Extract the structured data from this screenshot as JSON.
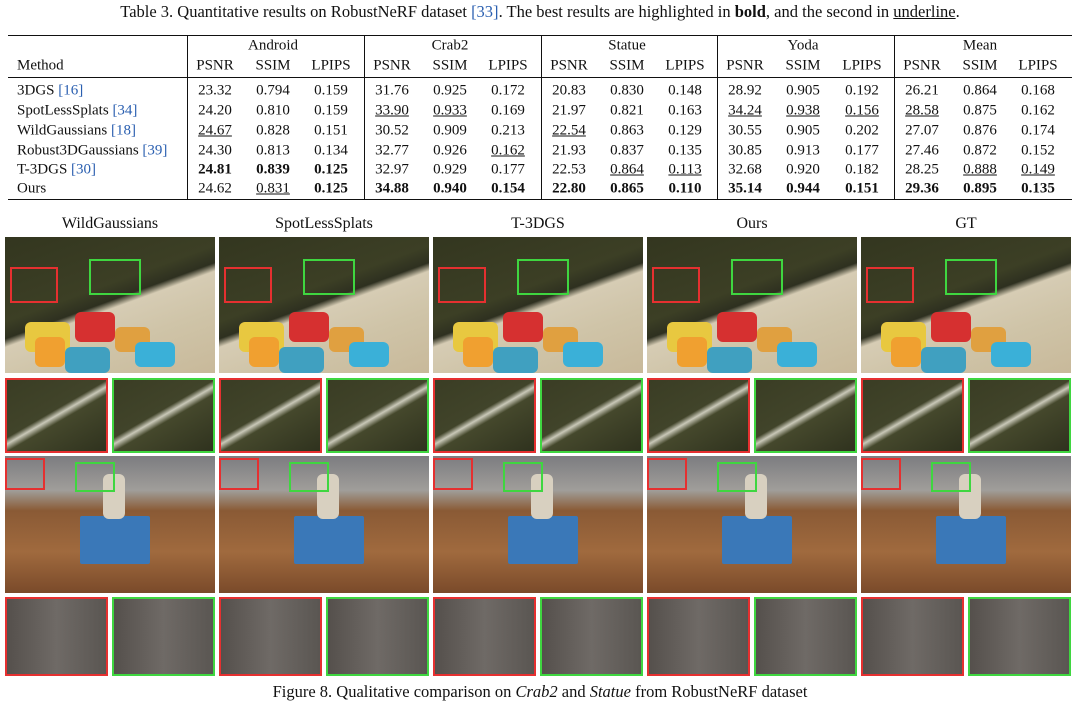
{
  "table": {
    "caption": {
      "text": "Table 3. Quantitative results on RobustNeRF dataset ",
      "cite": "[33]",
      "mid": ". The best results are highlighted in ",
      "bold": "bold",
      "join": ", and the second in ",
      "underline": "underline",
      "end": "."
    },
    "method_header": "Method",
    "groups": [
      "Android",
      "Crab2",
      "Statue",
      "Yoda",
      "Mean"
    ],
    "metrics": [
      "PSNR",
      "SSIM",
      "LPIPS"
    ],
    "rows": [
      {
        "method": "3DGS",
        "cite": "[16]",
        "values": [
          "23.32",
          "0.794",
          "0.159",
          "31.76",
          "0.925",
          "0.172",
          "20.83",
          "0.830",
          "0.148",
          "28.92",
          "0.905",
          "0.192",
          "26.21",
          "0.864",
          "0.168"
        ],
        "styles": [
          null,
          null,
          null,
          null,
          null,
          null,
          null,
          null,
          null,
          null,
          null,
          null,
          null,
          null,
          null
        ]
      },
      {
        "method": "SpotLessSplats",
        "cite": "[34]",
        "values": [
          "24.20",
          "0.810",
          "0.159",
          "33.90",
          "0.933",
          "0.169",
          "21.97",
          "0.821",
          "0.163",
          "34.24",
          "0.938",
          "0.156",
          "28.58",
          "0.875",
          "0.162"
        ],
        "styles": [
          null,
          null,
          null,
          "underline",
          "underline",
          null,
          null,
          null,
          null,
          "underline",
          "underline",
          "underline",
          "underline",
          null,
          null
        ]
      },
      {
        "method": "WildGaussians",
        "cite": "[18]",
        "values": [
          "24.67",
          "0.828",
          "0.151",
          "30.52",
          "0.909",
          "0.213",
          "22.54",
          "0.863",
          "0.129",
          "30.55",
          "0.905",
          "0.202",
          "27.07",
          "0.876",
          "0.174"
        ],
        "styles": [
          "underline",
          null,
          null,
          null,
          null,
          null,
          "underline",
          null,
          null,
          null,
          null,
          null,
          null,
          null,
          null
        ]
      },
      {
        "method": "Robust3DGaussians",
        "cite": "[39]",
        "values": [
          "24.30",
          "0.813",
          "0.134",
          "32.77",
          "0.926",
          "0.162",
          "21.93",
          "0.837",
          "0.135",
          "30.85",
          "0.913",
          "0.177",
          "27.46",
          "0.872",
          "0.152"
        ],
        "styles": [
          null,
          null,
          null,
          null,
          null,
          "underline",
          null,
          null,
          null,
          null,
          null,
          null,
          null,
          null,
          null
        ]
      },
      {
        "method": "T-3DGS",
        "cite": "[30]",
        "values": [
          "24.81",
          "0.839",
          "0.125",
          "32.97",
          "0.929",
          "0.177",
          "22.53",
          "0.864",
          "0.113",
          "32.68",
          "0.920",
          "0.182",
          "28.25",
          "0.888",
          "0.149"
        ],
        "styles": [
          "bold",
          "bold",
          "bold",
          null,
          null,
          null,
          null,
          "underline",
          "underline",
          null,
          null,
          null,
          null,
          "underline",
          "underline"
        ]
      },
      {
        "method": "Ours",
        "cite": null,
        "values": [
          "24.62",
          "0.831",
          "0.125",
          "34.88",
          "0.940",
          "0.154",
          "22.80",
          "0.865",
          "0.110",
          "35.14",
          "0.944",
          "0.151",
          "29.36",
          "0.895",
          "0.135"
        ],
        "styles": [
          null,
          "underline",
          "bold",
          "bold",
          "bold",
          "bold",
          "bold",
          "bold",
          "bold",
          "bold",
          "bold",
          "bold",
          "bold",
          "bold",
          "bold"
        ]
      }
    ]
  },
  "figure": {
    "columns": [
      "WildGaussians",
      "SpotLessSplats",
      "T-3DGS",
      "Ours",
      "GT"
    ],
    "caption": {
      "text": "Figure 8. Qualitative comparison on ",
      "scene1": "Crab2",
      "join": " and ",
      "scene2": "Statue",
      "end": " from RobustNeRF dataset"
    }
  }
}
